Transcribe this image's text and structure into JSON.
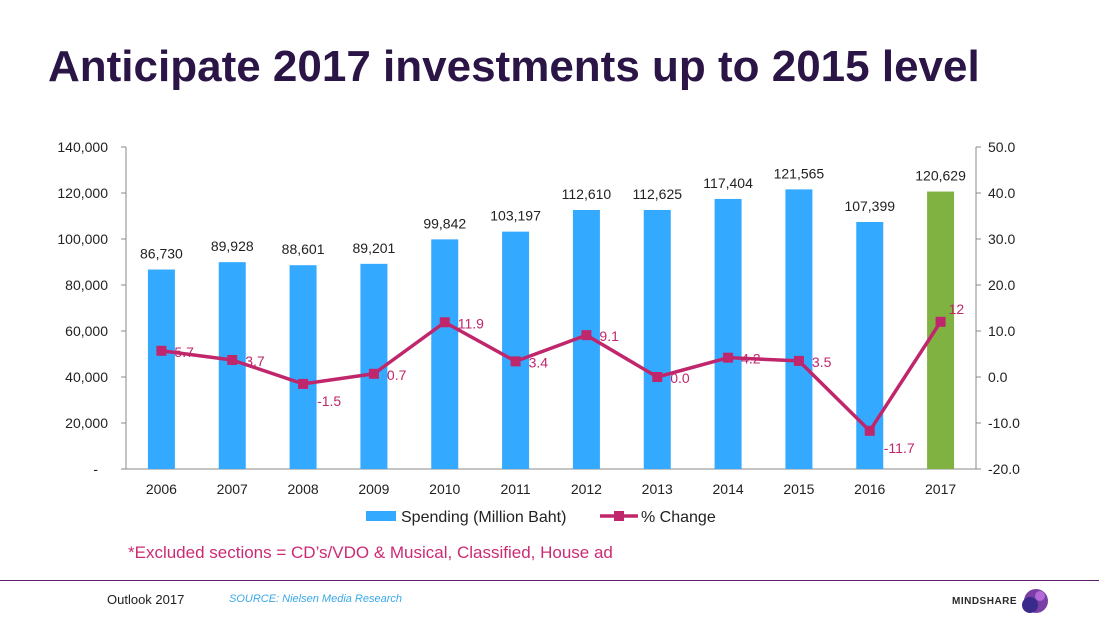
{
  "slide": {
    "title": "Anticipate 2017 investments up to 2015 level",
    "footnote": "*Excluded sections = CD’s/VDO & Musical, Classified, House ad",
    "footer_left": "Outlook 2017",
    "source": "SOURCE: Nielsen Media Research",
    "brand": "MINDSHARE"
  },
  "colors": {
    "bar": "#33aaff",
    "bar_highlight": "#7fb241",
    "line": "#c0266b",
    "title": "#2b1547"
  },
  "chart_data": {
    "type": "bar+line",
    "categories": [
      "2006",
      "2007",
      "2008",
      "2009",
      "2010",
      "2011",
      "2012",
      "2013",
      "2014",
      "2015",
      "2016",
      "2017"
    ],
    "series": [
      {
        "name": "Spending (Million Baht)",
        "type": "bar",
        "axis": "left",
        "values": [
          86730,
          89928,
          88601,
          89201,
          99842,
          103197,
          112610,
          112625,
          117404,
          121565,
          107399,
          120629
        ],
        "labels": [
          "86,730",
          "89,928",
          "88,601",
          "89,201",
          "99,842",
          "103,197",
          "112,610",
          "112,625",
          "117,404",
          "121,565",
          "107,399",
          "120,629"
        ]
      },
      {
        "name": "% Change",
        "type": "line",
        "axis": "right",
        "values": [
          5.7,
          3.7,
          -1.5,
          0.7,
          11.9,
          3.4,
          9.1,
          0.0,
          4.2,
          3.5,
          -11.7,
          12
        ],
        "labels": [
          "5.7",
          "3.7",
          "-1.5",
          "0.7",
          "11.9",
          "3.4",
          "9.1",
          "0.0",
          "4.2",
          "3.5",
          "-11.7",
          "12"
        ]
      }
    ],
    "highlight_category": "2017",
    "y_left": {
      "ylim": [
        0,
        140000
      ],
      "ticks": [
        "-",
        "20,000",
        "40,000",
        "60,000",
        "80,000",
        "100,000",
        "120,000",
        "140,000"
      ]
    },
    "y_right": {
      "ylim": [
        -20,
        50
      ],
      "ticks": [
        "-20.0",
        "-10.0",
        "0.0",
        "10.0",
        "20.0",
        "30.0",
        "40.0",
        "50.0"
      ]
    },
    "legend_position": "bottom",
    "grid": false
  }
}
